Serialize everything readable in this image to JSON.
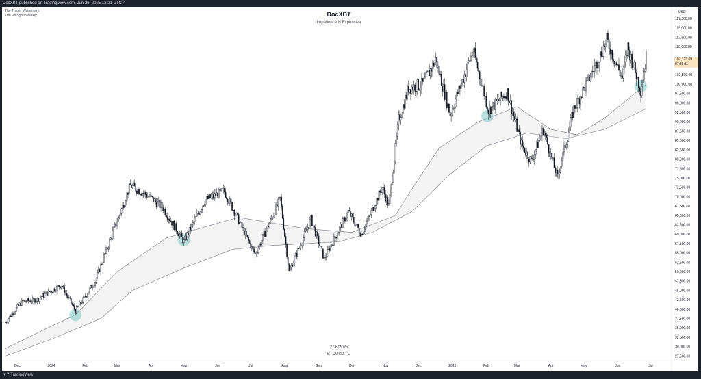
{
  "header": {
    "publish_line": "DocXBT published on TradingView.com, Jun 26, 2025 12:21 UTC-4"
  },
  "watermark": {
    "line1": "The Trader Watermark",
    "line2": "The Paragon Weekly"
  },
  "chart_title": "DocXBT",
  "chart_subtitle": "Impatience is Expensive",
  "date_stamp": "27/6/2025",
  "symbol_stamp": "BTCUSD · D",
  "currency": "USD",
  "footer": {
    "logo_text": "TradingView"
  },
  "price_tag": {
    "price": "107,123.69",
    "countdown": "07:38:11"
  },
  "colors": {
    "up": "#131722",
    "down": "#131722",
    "accent_down": "#f23645",
    "band_fill": "#f3f3f3",
    "band_line": "#787b86",
    "marker": "#80cbc4"
  },
  "chart_data": {
    "type": "candlestick",
    "title": "DocXBT",
    "subtitle": "Impatience is Expensive",
    "x_labels": [
      "Dec",
      "2024",
      "Feb",
      "Mar",
      "Apr",
      "May",
      "Jun",
      "Jul",
      "Aug",
      "Sep",
      "Oct",
      "Nov",
      "Dec",
      "2025",
      "Feb",
      "Mar",
      "Apr",
      "May",
      "Jun",
      "Jul"
    ],
    "y_ticks": [
      "117,500.00",
      "115,000.00",
      "112,500.00",
      "110,000.00",
      "102,500.00",
      "100,000.00",
      "97,500.00",
      "95,000.00",
      "92,500.00",
      "90,000.00",
      "87,500.00",
      "85,000.00",
      "82,500.00",
      "80,000.00",
      "77,500.00",
      "75,000.00",
      "72,500.00",
      "70,000.00",
      "67,500.00",
      "65,000.00",
      "62,500.00",
      "60,000.00",
      "57,500.00",
      "55,000.00",
      "52,500.00",
      "50,000.00",
      "47,500.00",
      "45,000.00",
      "42,500.00",
      "40,000.00",
      "37,500.00",
      "35,000.00",
      "32,500.00",
      "30,000.00",
      "27,500.00"
    ],
    "ylim": [
      26500,
      119000
    ],
    "price_path": [
      [
        "2023-11-20",
        36500
      ],
      [
        "2023-12-05",
        42000
      ],
      [
        "2023-12-18",
        42500
      ],
      [
        "2024-01-10",
        46500
      ],
      [
        "2024-01-23",
        39500
      ],
      [
        "2024-02-10",
        47500
      ],
      [
        "2024-02-28",
        62000
      ],
      [
        "2024-03-13",
        73000
      ],
      [
        "2024-03-28",
        70500
      ],
      [
        "2024-04-12",
        67000
      ],
      [
        "2024-05-01",
        58000
      ],
      [
        "2024-05-20",
        69000
      ],
      [
        "2024-06-07",
        71500
      ],
      [
        "2024-07-05",
        54500
      ],
      [
        "2024-07-28",
        69500
      ],
      [
        "2024-08-05",
        50000
      ],
      [
        "2024-08-25",
        64000
      ],
      [
        "2024-09-06",
        53500
      ],
      [
        "2024-09-28",
        66000
      ],
      [
        "2024-10-10",
        60000
      ],
      [
        "2024-10-29",
        72500
      ],
      [
        "2024-11-04",
        67500
      ],
      [
        "2024-11-13",
        90500
      ],
      [
        "2024-11-22",
        99000
      ],
      [
        "2024-12-05",
        100000
      ],
      [
        "2024-12-17",
        106500
      ],
      [
        "2024-12-30",
        92000
      ],
      [
        "2025-01-20",
        109000
      ],
      [
        "2025-02-03",
        93000
      ],
      [
        "2025-02-20",
        98000
      ],
      [
        "2025-03-05",
        84000
      ],
      [
        "2025-03-14",
        79500
      ],
      [
        "2025-03-25",
        88000
      ],
      [
        "2025-04-07",
        75000
      ],
      [
        "2025-04-22",
        93500
      ],
      [
        "2025-05-10",
        104000
      ],
      [
        "2025-05-22",
        111800
      ],
      [
        "2025-06-05",
        101500
      ],
      [
        "2025-06-10",
        110000
      ],
      [
        "2025-06-22",
        98500
      ],
      [
        "2025-06-27",
        107000
      ]
    ],
    "band_upper": [
      [
        "2023-11-20",
        29500
      ],
      [
        "2024-01-01",
        35500
      ],
      [
        "2024-01-23",
        38500
      ],
      [
        "2024-03-01",
        50000
      ],
      [
        "2024-04-15",
        59000
      ],
      [
        "2024-05-15",
        61500
      ],
      [
        "2024-06-20",
        64500
      ],
      [
        "2024-07-20",
        63000
      ],
      [
        "2024-08-20",
        61500
      ],
      [
        "2024-10-01",
        60500
      ],
      [
        "2024-11-10",
        65000
      ],
      [
        "2024-11-25",
        72000
      ],
      [
        "2024-12-20",
        83000
      ],
      [
        "2025-01-25",
        90000
      ],
      [
        "2025-03-01",
        94000
      ],
      [
        "2025-04-01",
        88000
      ],
      [
        "2025-04-25",
        86500
      ],
      [
        "2025-05-20",
        91000
      ],
      [
        "2025-06-27",
        100000
      ]
    ],
    "band_lower": [
      [
        "2023-11-20",
        27500
      ],
      [
        "2024-01-01",
        32000
      ],
      [
        "2024-02-15",
        37500
      ],
      [
        "2024-03-15",
        45000
      ],
      [
        "2024-05-01",
        51000
      ],
      [
        "2024-06-15",
        56000
      ],
      [
        "2024-07-20",
        57000
      ],
      [
        "2024-08-20",
        57500
      ],
      [
        "2024-09-20",
        58000
      ],
      [
        "2024-10-20",
        60500
      ],
      [
        "2024-11-25",
        66000
      ],
      [
        "2024-12-30",
        76000
      ],
      [
        "2025-02-01",
        83500
      ],
      [
        "2025-03-10",
        87000
      ],
      [
        "2025-04-15",
        85500
      ],
      [
        "2025-05-20",
        88000
      ],
      [
        "2025-06-27",
        93500
      ]
    ],
    "markers": [
      {
        "date": "2024-01-23",
        "value": 38500
      },
      {
        "date": "2024-05-01",
        "value": 58500
      },
      {
        "date": "2025-02-02",
        "value": 91500
      },
      {
        "date": "2025-06-22",
        "value": 99500
      }
    ],
    "last_price": 107123.69,
    "grid": false
  }
}
